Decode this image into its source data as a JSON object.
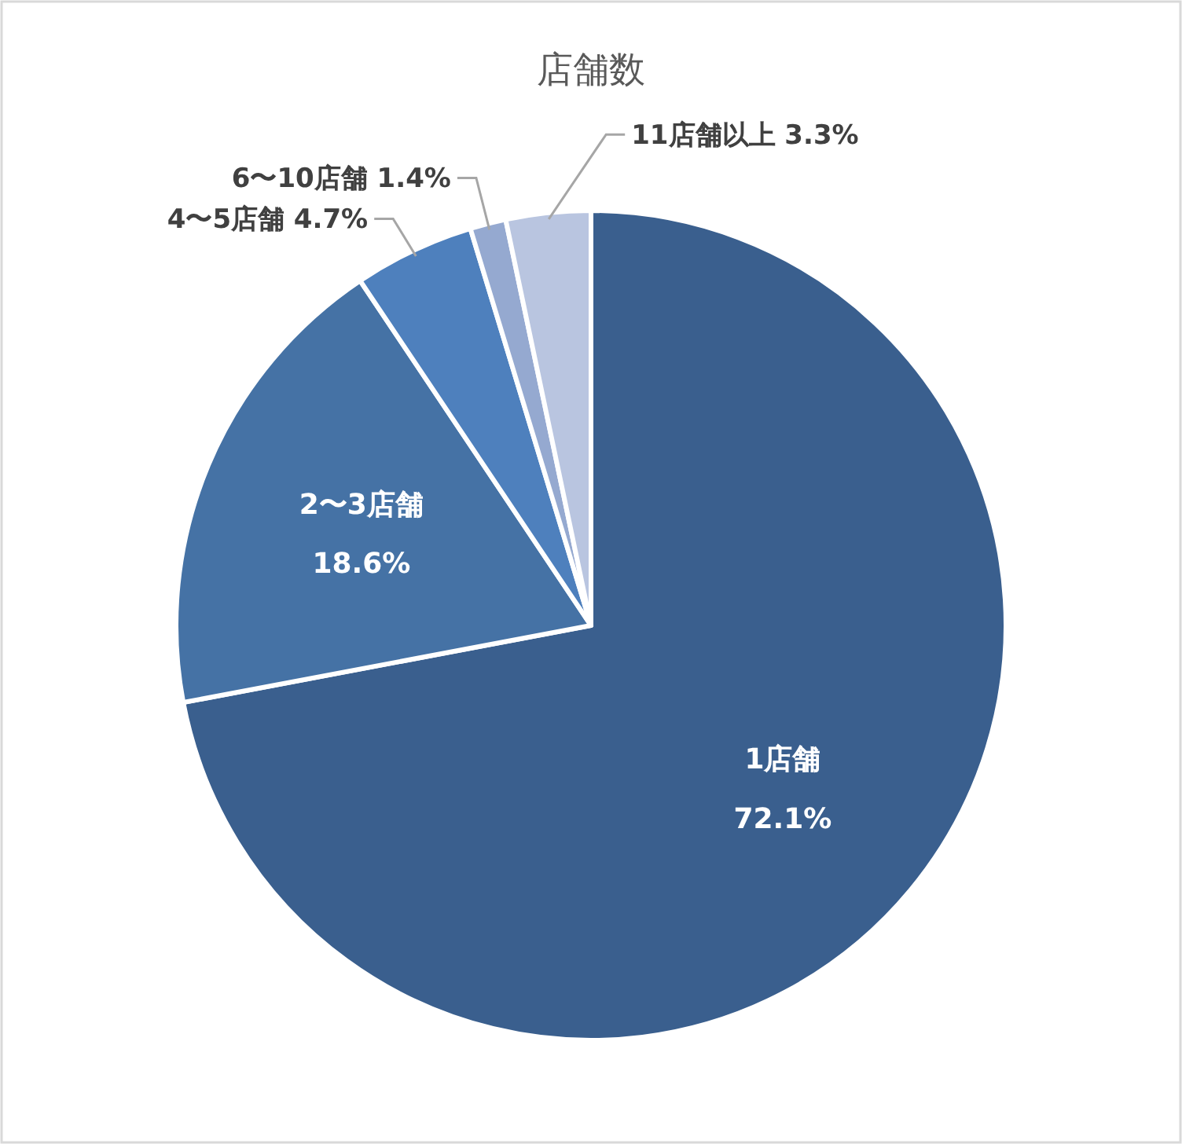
{
  "chart_data": {
    "type": "pie",
    "title": "店舗数",
    "categories": [
      "1店舗",
      "2〜3店舗",
      "4〜5店舗",
      "6〜10店舗",
      "11店舗以上"
    ],
    "values": [
      72.1,
      18.6,
      4.7,
      1.4,
      3.3
    ],
    "value_labels": [
      "72.1%",
      "18.6%",
      "4.7%",
      "1.4%",
      "3.3%"
    ],
    "colors": [
      "#3a5f8e",
      "#4572a5",
      "#4e80bd",
      "#95a9d0",
      "#b9c5e0"
    ]
  }
}
